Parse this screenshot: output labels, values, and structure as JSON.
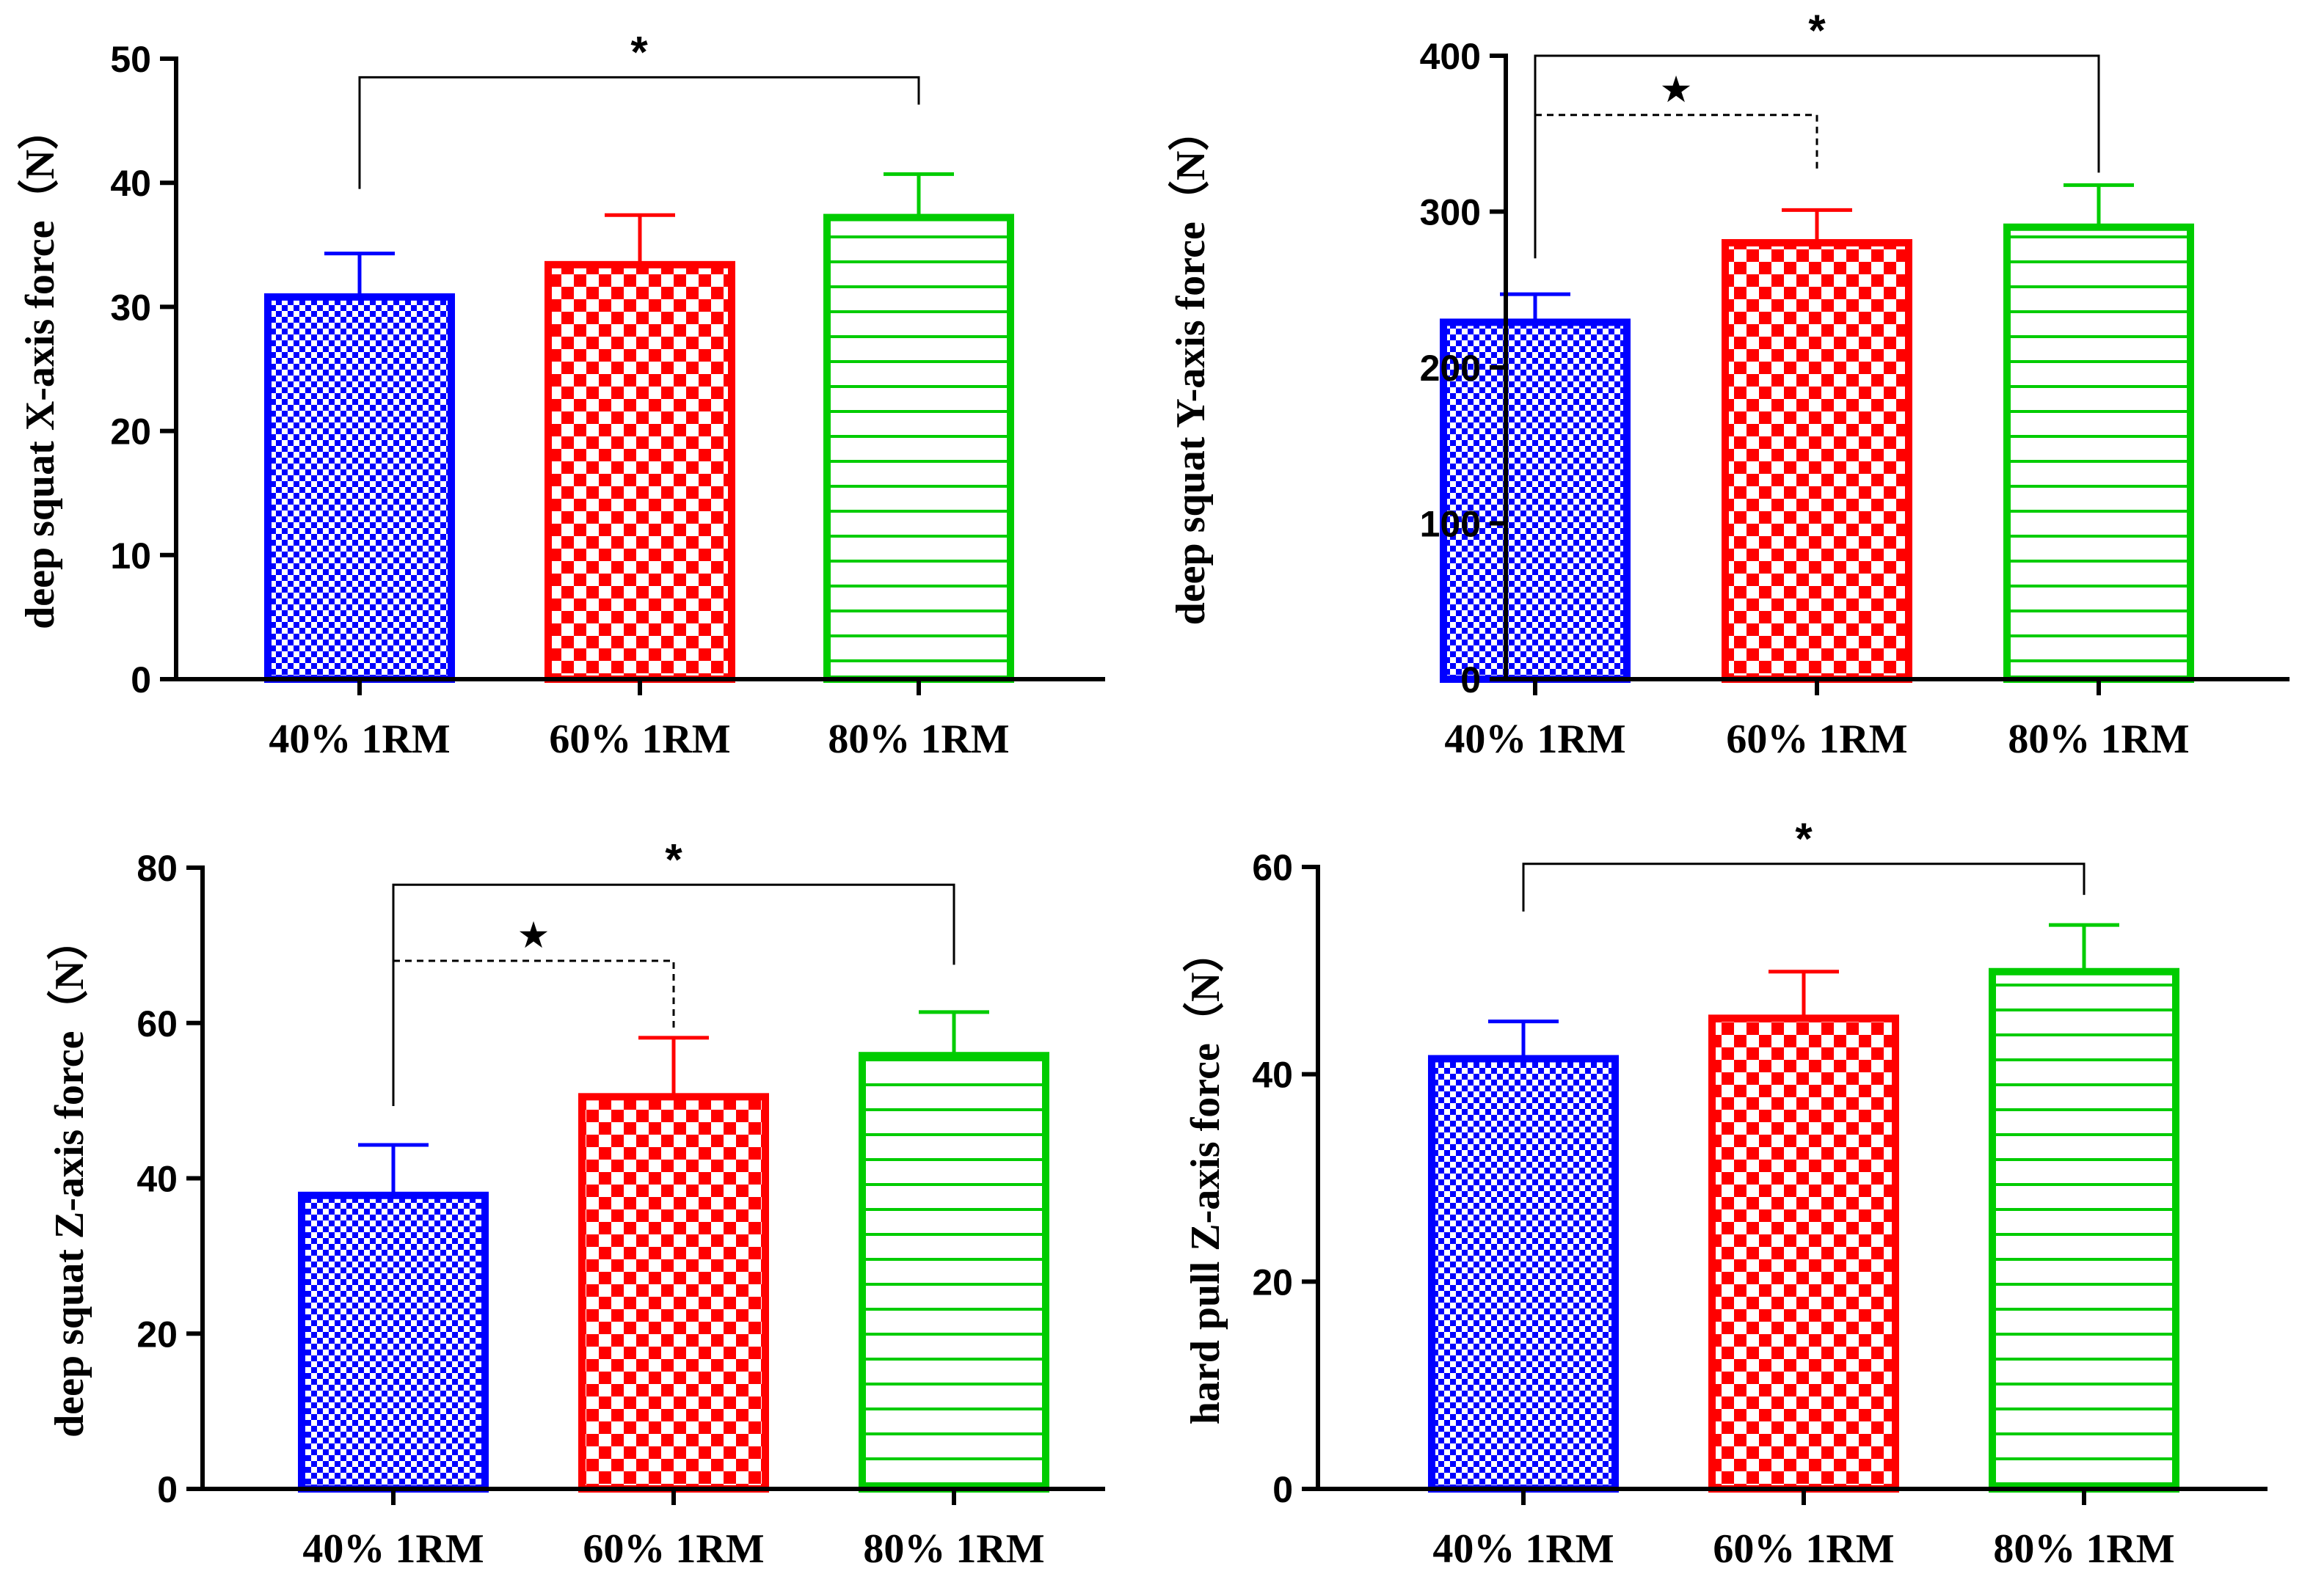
{
  "chart_data": [
    {
      "type": "bar",
      "title": "",
      "ylabel": "deep squat X-axis force（N）",
      "xlabel": "",
      "categories": [
        "40% 1RM",
        "60% 1RM",
        "80% 1RM"
      ],
      "values": [
        30.8,
        33.4,
        37.2
      ],
      "errors": [
        3.5,
        4.0,
        3.5
      ],
      "ylim": [
        0,
        50
      ],
      "yticks": [
        0,
        10,
        20,
        30,
        40,
        50
      ],
      "colors": [
        "#0000ff",
        "#ff0000",
        "#00cc00"
      ],
      "patterns": [
        "fine-checker",
        "checker",
        "horizontal-lines"
      ],
      "significance": [
        {
          "from": 0,
          "to": 2,
          "label": "*",
          "style": "solid",
          "y": 48.5,
          "start_drop": 39.5,
          "end_drop": 46.3
        }
      ]
    },
    {
      "type": "bar",
      "title": "",
      "ylabel": "deep squat  Y-axis force（N）",
      "xlabel": "",
      "categories": [
        "40% 1RM",
        "60% 1RM",
        "80% 1RM"
      ],
      "values": [
        229,
        280,
        290
      ],
      "errors": [
        18,
        21,
        27
      ],
      "ylim": [
        0,
        400
      ],
      "yticks": [
        0,
        100,
        200,
        300,
        400
      ],
      "colors": [
        "#0000ff",
        "#ff0000",
        "#00cc00"
      ],
      "patterns": [
        "fine-checker",
        "checker",
        "horizontal-lines"
      ],
      "significance": [
        {
          "from": 0,
          "to": 2,
          "label": "*",
          "style": "solid",
          "y": 400,
          "start_drop": 270,
          "end_drop": 325
        },
        {
          "from": 0,
          "to": 1,
          "label": "★",
          "style": "dashed",
          "y": 362,
          "start_drop": 362,
          "end_drop": 327
        }
      ]
    },
    {
      "type": "bar",
      "title": "",
      "ylabel": "deep squat Z-axis force（N）",
      "xlabel": "",
      "categories": [
        "40% 1RM",
        "60% 1RM",
        "80% 1RM"
      ],
      "values": [
        37.8,
        50.5,
        55.8
      ],
      "errors": [
        6.5,
        7.6,
        5.6
      ],
      "ylim": [
        0,
        80
      ],
      "yticks": [
        0,
        20,
        40,
        60,
        80
      ],
      "colors": [
        "#0000ff",
        "#ff0000",
        "#00cc00"
      ],
      "patterns": [
        "fine-checker",
        "checker",
        "horizontal-lines"
      ],
      "significance": [
        {
          "from": 0,
          "to": 2,
          "label": "*",
          "style": "solid",
          "y": 77.8,
          "start_drop": 49.3,
          "end_drop": 67.5
        },
        {
          "from": 0,
          "to": 1,
          "label": "★",
          "style": "dashed",
          "y": 68,
          "start_drop": 68,
          "end_drop": 59
        }
      ]
    },
    {
      "type": "bar",
      "title": "",
      "ylabel": "hard pull Z-axis force（N）",
      "xlabel": "",
      "categories": [
        "40% 1RM",
        "60% 1RM",
        "80% 1RM"
      ],
      "values": [
        41.5,
        45.4,
        49.9
      ],
      "errors": [
        3.6,
        4.5,
        4.5
      ],
      "ylim": [
        0,
        60
      ],
      "yticks": [
        0,
        20,
        40,
        60
      ],
      "colors": [
        "#0000ff",
        "#ff0000",
        "#00cc00"
      ],
      "patterns": [
        "fine-checker",
        "checker",
        "horizontal-lines"
      ],
      "significance": [
        {
          "from": 0,
          "to": 2,
          "label": "*",
          "style": "solid",
          "y": 60.3,
          "start_drop": 55.7,
          "end_drop": 57.3
        }
      ]
    }
  ]
}
